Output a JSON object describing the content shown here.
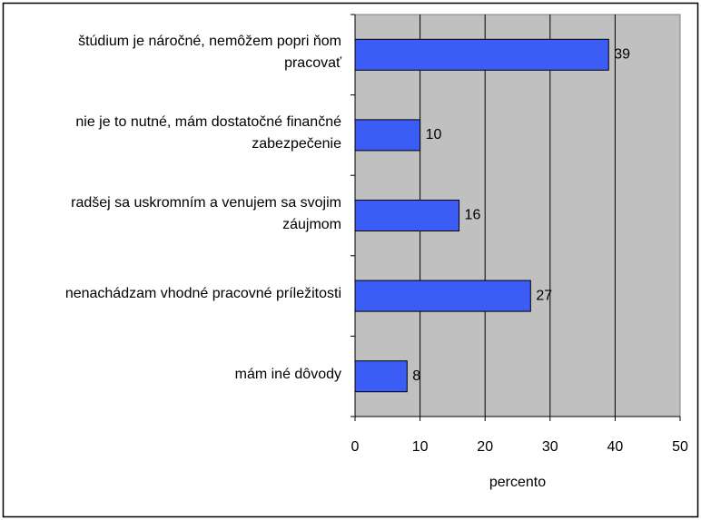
{
  "chart_data": {
    "type": "bar",
    "orientation": "horizontal",
    "categories": [
      "štúdium je náročné, nemôžem popri ňom pracovať",
      "nie je to nutné, mám dostatočné finančné zabezpečenie",
      "radšej sa uskromním a venujem sa svojim záujmom",
      "nenachádzam vhodné pracovné príležitosti",
      "mám iné dôvody"
    ],
    "values": [
      39,
      10,
      16,
      27,
      8
    ],
    "color": "#3b5cf5",
    "xlabel": "percento",
    "xlim": [
      0,
      50
    ],
    "xticks": [
      0,
      10,
      20,
      30,
      40,
      50
    ],
    "grid": true
  }
}
